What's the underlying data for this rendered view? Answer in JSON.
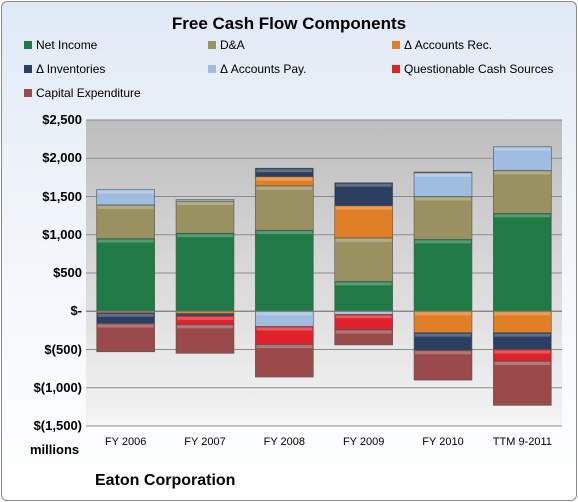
{
  "chart_data": {
    "type": "bar",
    "stacked": true,
    "title": "Free Cash Flow Components",
    "units_label": "millions",
    "company": "Eaton Corporation",
    "categories": [
      "FY 2006",
      "FY 2007",
      "FY 2008",
      "FY 2009",
      "FY 2010",
      "TTM 9-2011"
    ],
    "ylim": [
      -1500,
      2500
    ],
    "yticks": [
      2500,
      2000,
      1500,
      1000,
      500,
      0,
      -500,
      -1000,
      -1500
    ],
    "ytick_labels": [
      "$2,500",
      "$2,000",
      "$1,500",
      "$1,000",
      "$500",
      "$-",
      "$(500)",
      "$(1,000)",
      "$(1,500)"
    ],
    "grid": true,
    "legend_position": "top",
    "series": [
      {
        "name": "Net Income",
        "color": "#1f7a45",
        "values": [
          950,
          1020,
          1060,
          390,
          940,
          1280
        ]
      },
      {
        "name": "D&A",
        "color": "#9a9160",
        "values": [
          440,
          420,
          580,
          570,
          560,
          560
        ]
      },
      {
        "name": "Δ Accounts Rec.",
        "color": "#e07f25",
        "values": [
          -20,
          -30,
          120,
          420,
          -280,
          -280
        ]
      },
      {
        "name": "Δ Inventories",
        "color": "#2b3f63",
        "values": [
          -140,
          -30,
          110,
          300,
          -230,
          -220
        ]
      },
      {
        "name": "Δ Accounts Pay.",
        "color": "#9fbde0",
        "values": [
          200,
          20,
          -200,
          -40,
          310,
          310
        ]
      },
      {
        "name": "Questionable Cash Sources",
        "color": "#e0202a",
        "values": [
          0,
          -110,
          -230,
          -200,
          10,
          -150
        ]
      },
      {
        "name": "Capital Expenditure",
        "color": "#9a4a4a",
        "values": [
          -370,
          -380,
          -430,
          -200,
          -390,
          -580
        ]
      }
    ]
  }
}
